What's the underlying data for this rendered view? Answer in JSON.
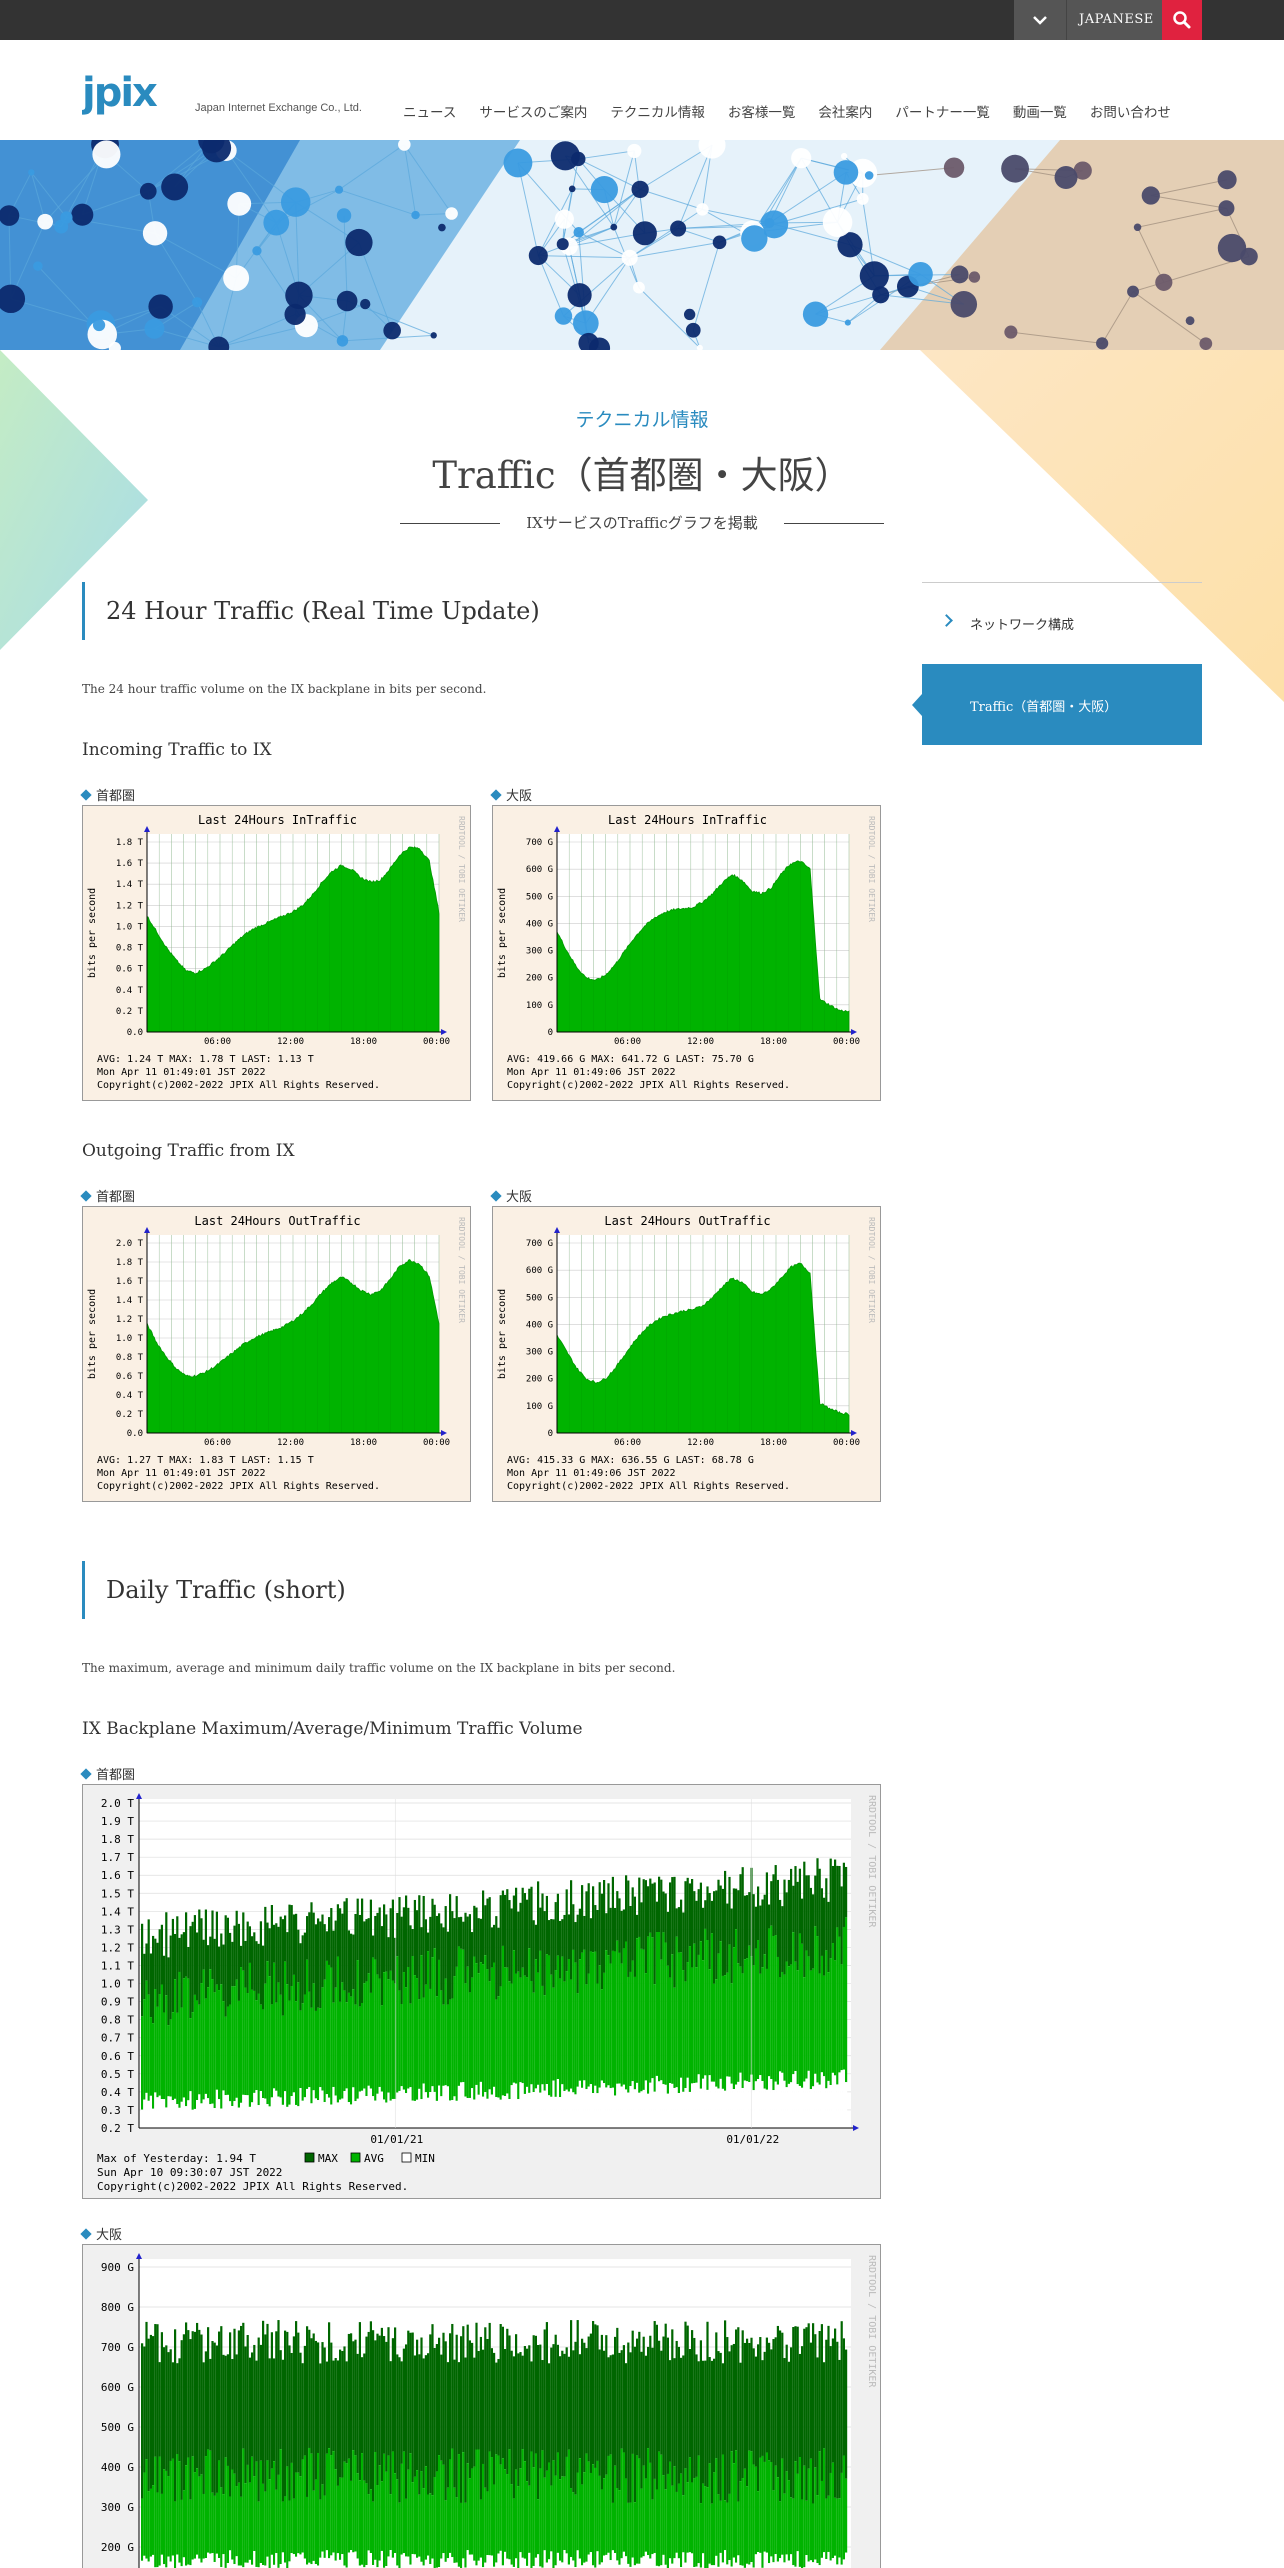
{
  "topbar": {
    "language": "JAPANESE"
  },
  "header": {
    "logo_text": "jpix",
    "company": "Japan Internet Exchange Co., Ltd.",
    "nav": [
      "ニュース",
      "サービスのご案内",
      "テクニカル情報",
      "お客様一覧",
      "会社案内",
      "パートナー一覧",
      "動画一覧",
      "お問い合わせ"
    ]
  },
  "page": {
    "category": "テクニカル情報",
    "title": "Traffic（首都圏・大阪）",
    "tagline": "IXサービスのTrafficグラフを掲載"
  },
  "sidenav": {
    "items": [
      "ネットワーク構成",
      "Traffic（首都圏・大阪）"
    ]
  },
  "sections": {
    "realtime": {
      "heading": "24 Hour Traffic (Real Time Update)",
      "description": "The 24 hour traffic volume on the IX backplane in bits per second.",
      "incoming_heading": "Incoming Traffic to IX",
      "outgoing_heading": "Outgoing Traffic from IX"
    },
    "daily": {
      "heading": "Daily Traffic (short)",
      "description": "The maximum, average and minimum daily traffic volume on the IX backplane in bits per second.",
      "volume_heading": "IX Backplane Maximum/Average/Minimum Traffic Volume"
    }
  },
  "regions": {
    "tokyo": "首都圏",
    "osaka": "大阪"
  },
  "graph_common": {
    "ylabel": "bits per second",
    "watermark": "RRDTOOL / TOBI OETIKER",
    "copyright": "Copyright(c)2002-2022 JPIX All Rights Reserved.",
    "x_ticks_24h": [
      "06:00",
      "12:00",
      "18:00",
      "00:00"
    ],
    "x_ticks_daily": [
      "01/01/21",
      "01/01/22"
    ],
    "legend": [
      "MAX",
      "AVG",
      "MIN"
    ]
  },
  "graphs": [
    {
      "id": "in_tokyo",
      "title": "Last 24Hours InTraffic",
      "yticks": [
        "0.0",
        "0.2 T",
        "0.4 T",
        "0.6 T",
        "0.8 T",
        "1.0 T",
        "1.2 T",
        "1.4 T",
        "1.6 T",
        "1.8 T"
      ],
      "ymax": 2.0,
      "stats": "AVG:    1.24  T   MAX:    1.78  T   LAST:    1.13  T",
      "date": "Mon Apr 11 01:49:01 JST 2022",
      "profile": [
        1.1,
        0.95,
        0.8,
        0.68,
        0.58,
        0.56,
        0.6,
        0.67,
        0.75,
        0.84,
        0.92,
        0.98,
        1.02,
        1.06,
        1.1,
        1.14,
        1.2,
        1.3,
        1.42,
        1.52,
        1.58,
        1.54,
        1.46,
        1.42,
        1.44,
        1.55,
        1.68,
        1.75,
        1.74,
        1.62,
        1.13
      ]
    },
    {
      "id": "in_osaka",
      "title": "Last 24Hours InTraffic",
      "yticks": [
        "0",
        "100 G",
        "200 G",
        "300 G",
        "400 G",
        "500 G",
        "600 G",
        "700 G"
      ],
      "ymax": 730,
      "stats": "AVG:  419.66  G   MAX:  641.72  G   LAST:   75.70  G",
      "date": "Mon Apr 11 01:49:06 JST 2022",
      "profile": [
        370,
        300,
        240,
        200,
        190,
        210,
        250,
        300,
        350,
        390,
        420,
        440,
        450,
        455,
        460,
        480,
        510,
        550,
        580,
        560,
        520,
        510,
        530,
        580,
        620,
        630,
        600,
        120,
        100,
        80,
        75
      ]
    },
    {
      "id": "out_tokyo",
      "title": "Last 24Hours OutTraffic",
      "yticks": [
        "0.0",
        "0.2 T",
        "0.4 T",
        "0.6 T",
        "0.8 T",
        "1.0 T",
        "1.2 T",
        "1.4 T",
        "1.6 T",
        "1.8 T",
        "2.0 T"
      ],
      "ymax": 2.0,
      "stats": "AVG:    1.27  T   MAX:    1.83  T   LAST:    1.15  T",
      "date": "Mon Apr 11 01:49:01 JST 2022",
      "profile": [
        1.15,
        0.95,
        0.8,
        0.68,
        0.6,
        0.6,
        0.64,
        0.7,
        0.78,
        0.86,
        0.94,
        1.0,
        1.04,
        1.08,
        1.12,
        1.18,
        1.26,
        1.36,
        1.48,
        1.58,
        1.64,
        1.58,
        1.5,
        1.46,
        1.5,
        1.62,
        1.76,
        1.82,
        1.78,
        1.65,
        1.15
      ]
    },
    {
      "id": "out_osaka",
      "title": "Last 24Hours OutTraffic",
      "yticks": [
        "0",
        "100 G",
        "200 G",
        "300 G",
        "400 G",
        "500 G",
        "600 G",
        "700 G"
      ],
      "ymax": 730,
      "stats": "AVG:  415.33  G   MAX:  636.55  G   LAST:   68.78  G",
      "date": "Mon Apr 11 01:49:06 JST 2022",
      "profile": [
        360,
        300,
        240,
        200,
        185,
        200,
        240,
        290,
        340,
        380,
        410,
        430,
        440,
        450,
        455,
        470,
        500,
        540,
        570,
        555,
        520,
        510,
        530,
        570,
        610,
        625,
        590,
        110,
        90,
        75,
        69
      ]
    },
    {
      "id": "daily_tokyo",
      "yticks": [
        "0.2 T",
        "0.3 T",
        "0.4 T",
        "0.5 T",
        "0.6 T",
        "0.7 T",
        "0.8 T",
        "0.9 T",
        "1.0 T",
        "1.1 T",
        "1.2 T",
        "1.3 T",
        "1.4 T",
        "1.5 T",
        "1.6 T",
        "1.7 T",
        "1.8 T",
        "1.9 T",
        "2.0 T"
      ],
      "stats": "Max of Yesterday:    1.94  T",
      "date": "Sun Apr 10 09:30:07 JST 2022"
    },
    {
      "id": "daily_osaka",
      "yticks": [
        "200 G",
        "300 G",
        "400 G",
        "500 G",
        "600 G",
        "700 G",
        "800 G",
        "900 G"
      ]
    }
  ],
  "colors": {
    "accent": "#2a8bbf",
    "search": "#e0223f",
    "graph_green": "#00b300",
    "graph_dark": "#006600",
    "graph_bg": "#faf0e4"
  }
}
